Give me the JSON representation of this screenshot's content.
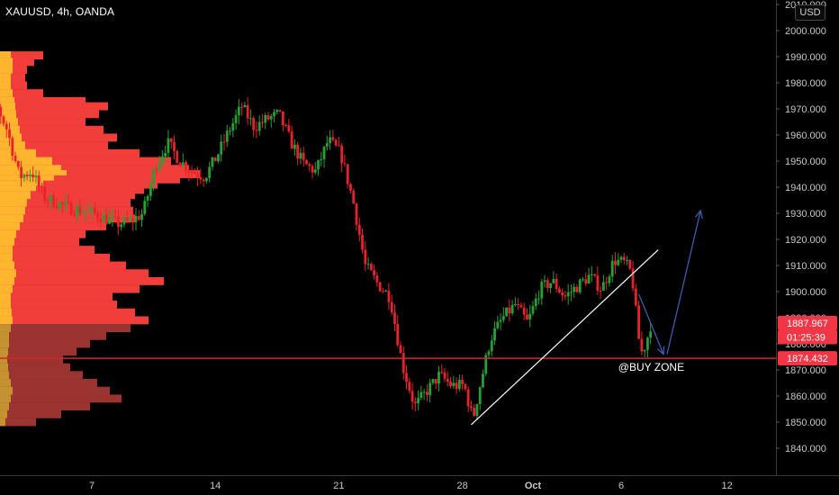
{
  "header": {
    "symbol_line": "XAUUSD, 4h, OANDA",
    "currency_button": "USD"
  },
  "chart_data": {
    "type": "candlestick",
    "title": "XAUUSD, 4h, OANDA",
    "ylim": [
      1834,
      2012
    ],
    "y_ticks": [
      {
        "value": 2010,
        "label": "2010.000"
      },
      {
        "value": 2000,
        "label": "2000.000"
      },
      {
        "value": 1990,
        "label": "1990.000"
      },
      {
        "value": 1980,
        "label": "1980.000"
      },
      {
        "value": 1970,
        "label": "1970.000"
      },
      {
        "value": 1960,
        "label": "1960.000"
      },
      {
        "value": 1950,
        "label": "1950.000"
      },
      {
        "value": 1940,
        "label": "1940.000"
      },
      {
        "value": 1930,
        "label": "1930.000"
      },
      {
        "value": 1920,
        "label": "1920.000"
      },
      {
        "value": 1910,
        "label": "1910.000"
      },
      {
        "value": 1900,
        "label": "1900.000"
      },
      {
        "value": 1890,
        "label": "1890.000"
      },
      {
        "value": 1880,
        "label": "1880.000"
      },
      {
        "value": 1870,
        "label": "1870.000"
      },
      {
        "value": 1860,
        "label": "1860.000"
      },
      {
        "value": 1850,
        "label": "1850.000"
      },
      {
        "value": 1840,
        "label": "1840.000"
      }
    ],
    "x_ticks": [
      {
        "label": "7",
        "day": 7,
        "bold": false
      },
      {
        "label": "14",
        "day": 14,
        "bold": false
      },
      {
        "label": "21",
        "day": 21,
        "bold": false
      },
      {
        "label": "28",
        "day": 28,
        "bold": false
      },
      {
        "label": "Oct",
        "day": 32,
        "bold": true
      },
      {
        "label": "6",
        "day": 37,
        "bold": false
      },
      {
        "label": "12",
        "day": 43,
        "bold": false
      }
    ],
    "price_tags": [
      {
        "label": "1887.967",
        "value": 1887.967,
        "style": "filled",
        "color": "#f23645"
      },
      {
        "label": "01:25:39",
        "value": 1882.6,
        "style": "filled",
        "color": "#f23645"
      },
      {
        "label": "1874.432",
        "value": 1874.432,
        "style": "filled",
        "color": "#f23645"
      }
    ],
    "support_line": {
      "value": 1874.432,
      "color": "#e0202a"
    },
    "annotations": [
      {
        "text": "@BUY ZONE",
        "day": 37.5,
        "value": 1870
      }
    ],
    "trendline": {
      "from": {
        "day": 28.5,
        "value": 1849
      },
      "to": {
        "day": 39.1,
        "value": 1916
      },
      "color": "#ffffff"
    },
    "arrows": [
      {
        "from": {
          "day": 38.0,
          "value": 1899
        },
        "to": {
          "day": 39.4,
          "value": 1876
        },
        "color": "#3d63b8"
      },
      {
        "from": {
          "day": 39.6,
          "value": 1876
        },
        "to": {
          "day": 41.5,
          "value": 1931
        },
        "color": "#3d63b8"
      }
    ],
    "ohlc_anchors": [
      [
        0.0,
        1986
      ],
      [
        0.8,
        1981
      ],
      [
        1.5,
        1973
      ],
      [
        2.2,
        1962
      ],
      [
        2.9,
        1944
      ],
      [
        3.6,
        1946
      ],
      [
        4.3,
        1936
      ],
      [
        5.0,
        1934
      ],
      [
        5.7,
        1932
      ],
      [
        6.4,
        1931
      ],
      [
        7.1,
        1930
      ],
      [
        7.8,
        1928
      ],
      [
        8.5,
        1926
      ],
      [
        9.2,
        1927
      ],
      [
        9.9,
        1930
      ],
      [
        10.6,
        1948
      ],
      [
        11.3,
        1957
      ],
      [
        12.0,
        1950
      ],
      [
        12.7,
        1946
      ],
      [
        13.4,
        1944
      ],
      [
        14.1,
        1952
      ],
      [
        14.8,
        1962
      ],
      [
        15.5,
        1971
      ],
      [
        16.2,
        1963
      ],
      [
        16.9,
        1966
      ],
      [
        17.6,
        1968
      ],
      [
        18.3,
        1957
      ],
      [
        19.0,
        1949
      ],
      [
        19.7,
        1946
      ],
      [
        20.4,
        1958
      ],
      [
        21.1,
        1953
      ],
      [
        21.8,
        1935
      ],
      [
        22.5,
        1910
      ],
      [
        23.2,
        1903
      ],
      [
        23.9,
        1898
      ],
      [
        24.6,
        1872
      ],
      [
        25.3,
        1856
      ],
      [
        26.0,
        1862
      ],
      [
        26.7,
        1868
      ],
      [
        27.4,
        1864
      ],
      [
        28.1,
        1864
      ],
      [
        28.6,
        1851
      ],
      [
        29.0,
        1864
      ],
      [
        29.6,
        1882
      ],
      [
        30.3,
        1890
      ],
      [
        31.0,
        1895
      ],
      [
        31.7,
        1888
      ],
      [
        32.4,
        1901
      ],
      [
        33.1,
        1904
      ],
      [
        33.8,
        1898
      ],
      [
        34.5,
        1902
      ],
      [
        35.2,
        1906
      ],
      [
        35.9,
        1901
      ],
      [
        36.6,
        1912
      ],
      [
        37.2,
        1911
      ],
      [
        37.6,
        1907
      ],
      [
        37.9,
        1888
      ],
      [
        38.1,
        1876
      ],
      [
        38.4,
        1880
      ],
      [
        38.7,
        1888
      ]
    ],
    "volume_profile": {
      "colors": {
        "upper_light": "#ffb52e",
        "upper_dark": "#f23e3a",
        "lower_light": "#c49231",
        "lower_dark": "#9b3430"
      },
      "split_value": 1887.967,
      "bins": [
        [
          1990.5,
          12,
          48
        ],
        [
          1988,
          14,
          38
        ],
        [
          1985,
          14,
          30
        ],
        [
          1982,
          12,
          28
        ],
        [
          1979,
          12,
          30
        ],
        [
          1976,
          14,
          48
        ],
        [
          1973,
          16,
          95
        ],
        [
          1971,
          17,
          120
        ],
        [
          1968,
          18,
          110
        ],
        [
          1965,
          20,
          95
        ],
        [
          1962,
          22,
          115
        ],
        [
          1959,
          24,
          130
        ],
        [
          1956,
          28,
          120
        ],
        [
          1953,
          40,
          155
        ],
        [
          1950,
          58,
          190
        ],
        [
          1947,
          68,
          210
        ],
        [
          1945,
          74,
          222
        ],
        [
          1943,
          60,
          200
        ],
        [
          1941,
          48,
          175
        ],
        [
          1939,
          40,
          160
        ],
        [
          1937,
          34,
          150
        ],
        [
          1934,
          30,
          145
        ],
        [
          1931,
          28,
          148
        ],
        [
          1928,
          26,
          150
        ],
        [
          1925,
          22,
          118
        ],
        [
          1922,
          18,
          95
        ],
        [
          1919,
          16,
          88
        ],
        [
          1916,
          14,
          105
        ],
        [
          1913,
          14,
          122
        ],
        [
          1910,
          16,
          140
        ],
        [
          1907,
          18,
          165
        ],
        [
          1904,
          16,
          182
        ],
        [
          1901,
          14,
          155
        ],
        [
          1898,
          12,
          125
        ],
        [
          1895,
          12,
          130
        ],
        [
          1892,
          13,
          150
        ],
        [
          1889,
          14,
          165
        ],
        [
          1886,
          12,
          145
        ],
        [
          1883,
          10,
          118
        ],
        [
          1880,
          10,
          100
        ],
        [
          1877,
          9,
          85
        ],
        [
          1874,
          8,
          70
        ],
        [
          1871,
          9,
          78
        ],
        [
          1868,
          10,
          92
        ],
        [
          1865,
          12,
          108
        ],
        [
          1862,
          14,
          122
        ],
        [
          1859,
          12,
          135
        ],
        [
          1856,
          10,
          100
        ],
        [
          1853,
          8,
          68
        ],
        [
          1850,
          6,
          40
        ]
      ]
    }
  }
}
